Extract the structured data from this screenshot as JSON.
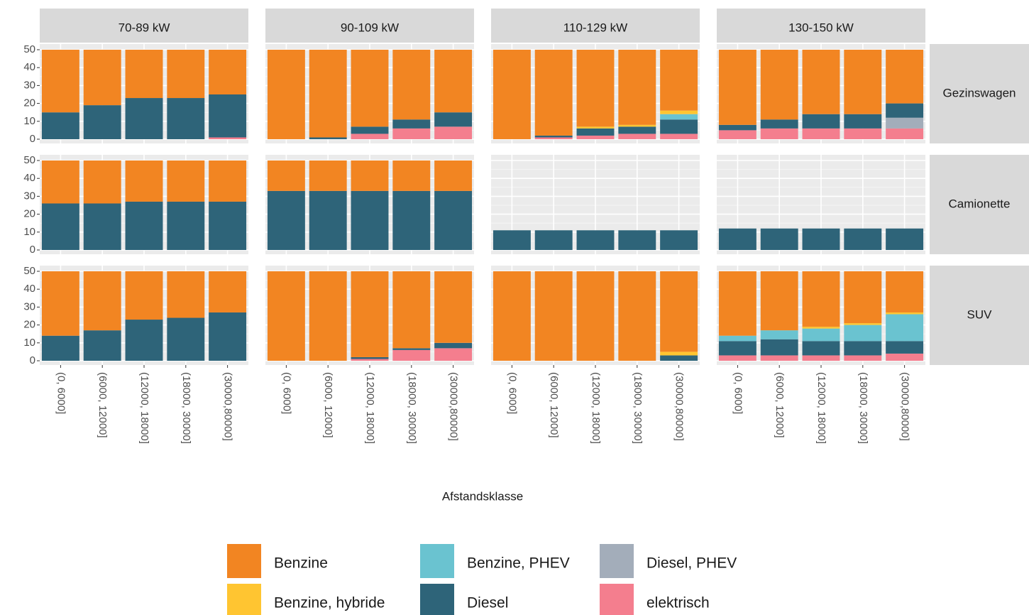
{
  "chart_data": {
    "type": "bar",
    "stacked": true,
    "xlabel": "Afstandsklasse",
    "categories": [
      "(0, 6000]",
      "(6000, 12000]",
      "(12000, 18000]",
      "(18000, 30000]",
      "(30000,80000]"
    ],
    "columns": [
      "70-89 kW",
      "90-109 kW",
      "110-129 kW",
      "130-150 kW"
    ],
    "rows": [
      "Gezinswagen",
      "Camionette",
      "SUV"
    ],
    "ylim": [
      0,
      50
    ],
    "yticks": [
      0,
      10,
      20,
      30,
      40,
      50
    ],
    "grid": true,
    "legend": "bottom",
    "series": [
      {
        "name": "Benzine",
        "color": "#f28522",
        "values": [
          [
            [
              35,
              31,
              27,
              27,
              25
            ],
            [
              50,
              49,
              43,
              39,
              35
            ],
            [
              50,
              48,
              43,
              42,
              34
            ],
            [
              42,
              39,
              36,
              36,
              30
            ]
          ],
          [
            [
              24,
              24,
              23,
              23,
              23
            ],
            [
              17,
              17,
              17,
              17,
              17
            ],
            [
              0,
              0,
              0,
              0,
              0
            ],
            [
              0,
              0,
              0,
              0,
              0
            ]
          ],
          [
            [
              36,
              33,
              27,
              26,
              23
            ],
            [
              50,
              50,
              48,
              43,
              40
            ],
            [
              50,
              50,
              50,
              50,
              45
            ],
            [
              36,
              33,
              31,
              29,
              23
            ]
          ]
        ]
      },
      {
        "name": "Benzine, hybride",
        "color": "#ffc531",
        "values": [
          [
            [
              0,
              0,
              0,
              0,
              0
            ],
            [
              0,
              0,
              0,
              0,
              0
            ],
            [
              0,
              0,
              1,
              1,
              2
            ],
            [
              0,
              0,
              0,
              0,
              0
            ]
          ],
          [
            [
              0,
              0,
              0,
              0,
              0
            ],
            [
              0,
              0,
              0,
              0,
              0
            ],
            [
              0,
              0,
              0,
              0,
              0
            ],
            [
              0,
              0,
              0,
              0,
              0
            ]
          ],
          [
            [
              0,
              0,
              0,
              0,
              0
            ],
            [
              0,
              0,
              0,
              0,
              0
            ],
            [
              0,
              0,
              0,
              0,
              2
            ],
            [
              0,
              0,
              1,
              1,
              1
            ]
          ]
        ]
      },
      {
        "name": "Benzine, PHEV",
        "color": "#6ac3d0",
        "values": [
          [
            [
              0,
              0,
              0,
              0,
              0
            ],
            [
              0,
              0,
              0,
              0,
              0
            ],
            [
              0,
              0,
              0,
              0,
              3
            ],
            [
              0,
              0,
              0,
              0,
              0
            ]
          ],
          [
            [
              0,
              0,
              0,
              0,
              0
            ],
            [
              0,
              0,
              0,
              0,
              0
            ],
            [
              0,
              0,
              0,
              0,
              0
            ],
            [
              0,
              0,
              0,
              0,
              0
            ]
          ],
          [
            [
              0,
              0,
              0,
              0,
              0
            ],
            [
              0,
              0,
              0,
              0,
              0
            ],
            [
              0,
              0,
              0,
              0,
              0
            ],
            [
              3,
              5,
              7,
              9,
              15
            ]
          ]
        ]
      },
      {
        "name": "Diesel",
        "color": "#2e6479",
        "values": [
          [
            [
              15,
              19,
              23,
              23,
              24
            ],
            [
              0,
              1,
              4,
              5,
              8
            ],
            [
              0,
              1,
              4,
              4,
              8
            ],
            [
              3,
              5,
              8,
              8,
              8
            ]
          ],
          [
            [
              26,
              26,
              27,
              27,
              27
            ],
            [
              33,
              33,
              33,
              33,
              33
            ],
            [
              11,
              11,
              11,
              11,
              11
            ],
            [
              12,
              12,
              12,
              12,
              12
            ]
          ],
          [
            [
              14,
              17,
              23,
              24,
              27
            ],
            [
              0,
              0,
              1,
              1,
              3
            ],
            [
              0,
              0,
              0,
              0,
              3
            ],
            [
              8,
              9,
              8,
              8,
              7
            ]
          ]
        ]
      },
      {
        "name": "Diesel, PHEV",
        "color": "#a3adba",
        "values": [
          [
            [
              0,
              0,
              0,
              0,
              0
            ],
            [
              0,
              0,
              0,
              0,
              0
            ],
            [
              0,
              0,
              0,
              0,
              0
            ],
            [
              0,
              0,
              0,
              0,
              6
            ]
          ],
          [
            [
              0,
              0,
              0,
              0,
              0
            ],
            [
              0,
              0,
              0,
              0,
              0
            ],
            [
              0,
              0,
              0,
              0,
              0
            ],
            [
              0,
              0,
              0,
              0,
              0
            ]
          ],
          [
            [
              0,
              0,
              0,
              0,
              0
            ],
            [
              0,
              0,
              0,
              0,
              0
            ],
            [
              0,
              0,
              0,
              0,
              0
            ],
            [
              0,
              0,
              0,
              0,
              0
            ]
          ]
        ]
      },
      {
        "name": "elektrisch",
        "color": "#f47e8e",
        "values": [
          [
            [
              0,
              0,
              0,
              0,
              1
            ],
            [
              0,
              0,
              3,
              6,
              7
            ],
            [
              0,
              1,
              2,
              3,
              3
            ],
            [
              5,
              6,
              6,
              6,
              6
            ]
          ],
          [
            [
              0,
              0,
              0,
              0,
              0
            ],
            [
              0,
              0,
              0,
              0,
              0
            ],
            [
              0,
              0,
              0,
              0,
              0
            ],
            [
              0,
              0,
              0,
              0,
              0
            ]
          ],
          [
            [
              0,
              0,
              0,
              0,
              0
            ],
            [
              0,
              0,
              1,
              6,
              7
            ],
            [
              0,
              0,
              0,
              0,
              0
            ],
            [
              3,
              3,
              3,
              3,
              4
            ]
          ]
        ]
      }
    ]
  }
}
